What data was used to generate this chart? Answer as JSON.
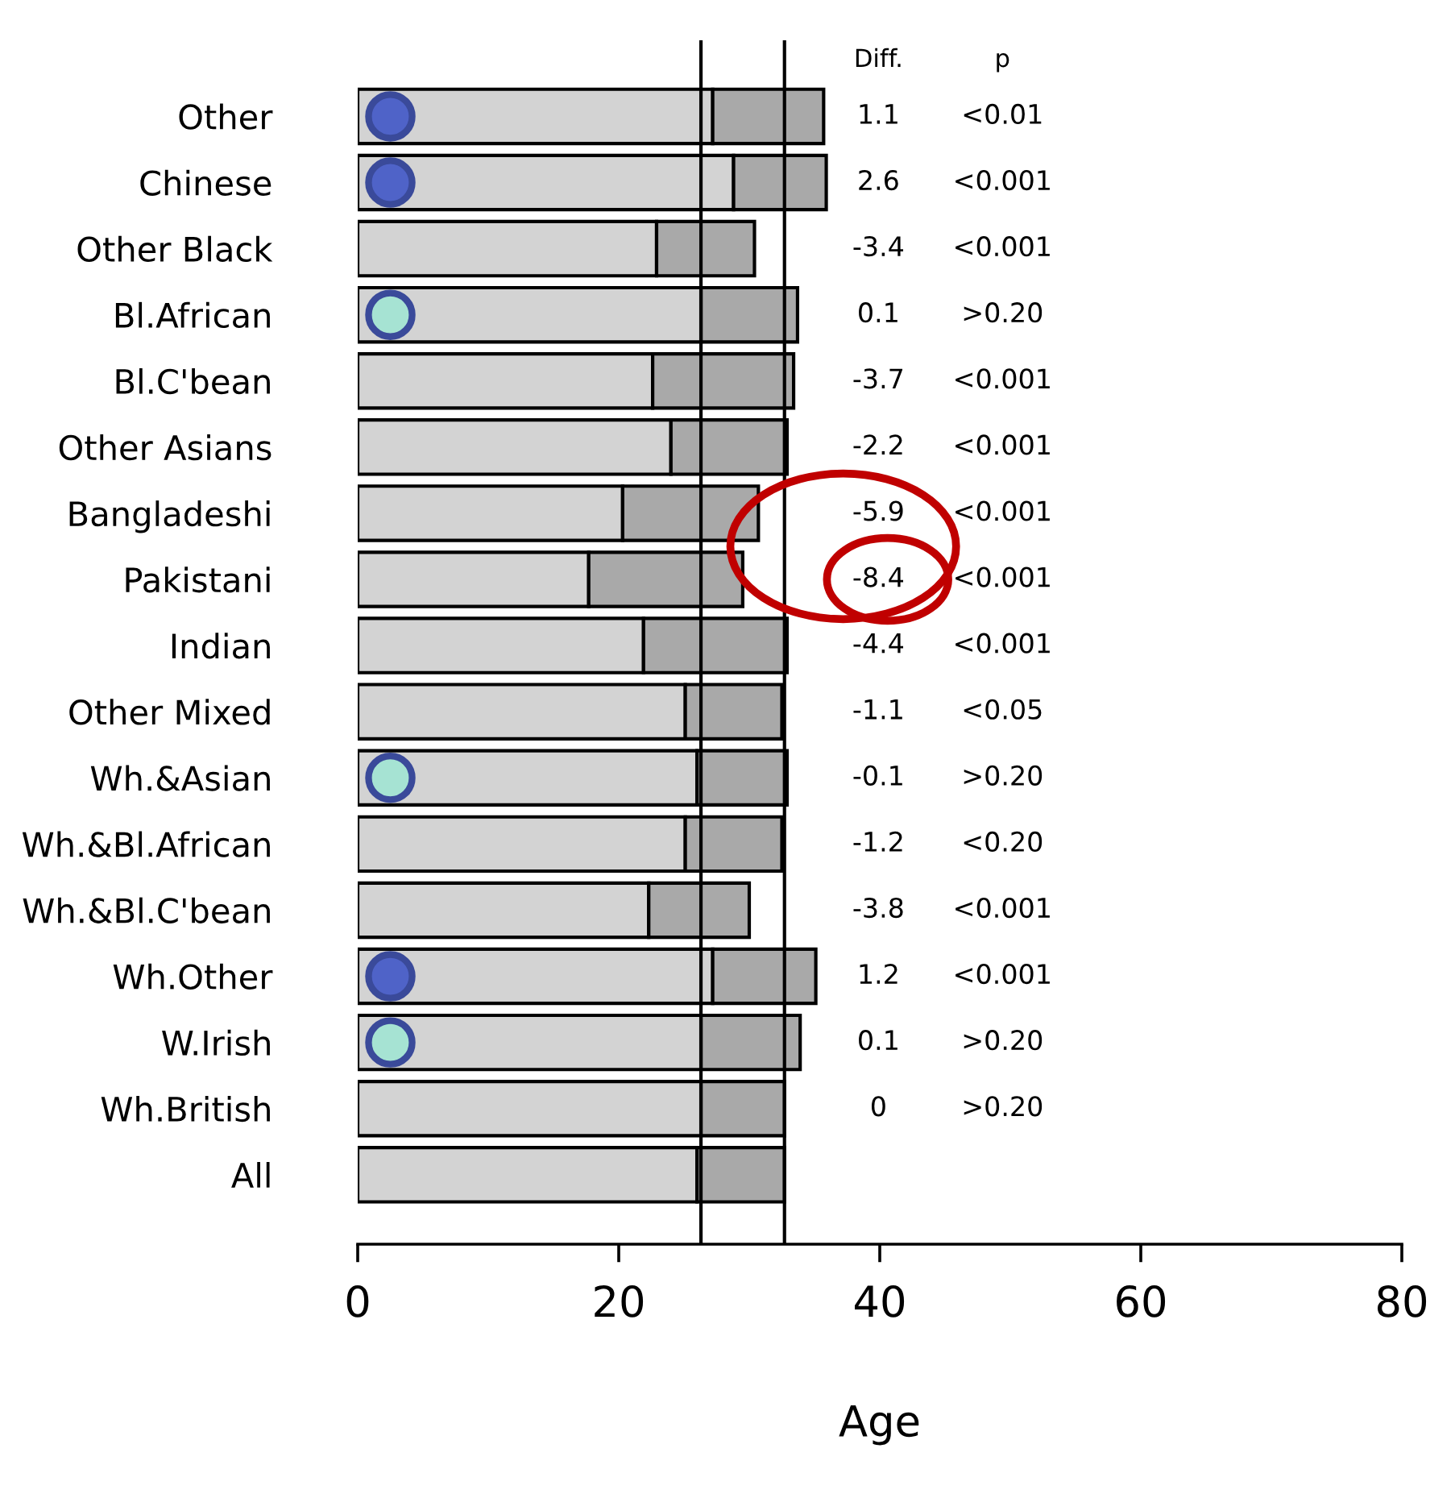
{
  "chart_data": {
    "type": "bar",
    "orientation": "horizontal",
    "stacked": true,
    "xlabel": "Age",
    "categories": [
      "Other",
      "Chinese",
      "Other Black",
      "Bl.African",
      "Bl.C'bean",
      "Other Asians",
      "Bangladeshi",
      "Pakistani",
      "Indian",
      "Other Mixed",
      "Wh.&Asian",
      "Wh.&Bl.African",
      "Wh.&Bl.C'bean",
      "Wh.Other",
      "W.Irish",
      "Wh.British",
      "All"
    ],
    "series": [
      {
        "color": "#d3d3d3",
        "values": [
          27.2,
          28.8,
          22.9,
          26.3,
          22.6,
          24.0,
          20.3,
          17.7,
          21.9,
          25.1,
          26.0,
          25.1,
          22.3,
          27.2,
          26.3,
          26.3,
          26.0
        ]
      },
      {
        "color": "#a9a9a9",
        "values": [
          8.5,
          7.1,
          7.5,
          7.4,
          10.8,
          8.9,
          10.4,
          11.8,
          11.0,
          7.4,
          6.9,
          7.4,
          7.7,
          7.9,
          7.6,
          6.4,
          6.7
        ]
      },
      {
        "type": "scatter",
        "color": "#4f63c8",
        "marker": "circle",
        "values": [
          2.5,
          2.5,
          null,
          null,
          null,
          null,
          null,
          null,
          null,
          null,
          null,
          null,
          null,
          2.5,
          null,
          null,
          null
        ]
      },
      {
        "type": "scatter",
        "color": "#a6e3d3",
        "marker": "circle",
        "values": [
          null,
          null,
          null,
          2.5,
          null,
          null,
          null,
          null,
          null,
          null,
          2.5,
          null,
          null,
          null,
          2.5,
          null,
          null
        ]
      }
    ],
    "xlim": [
      0,
      80
    ],
    "xticks": [
      0,
      20,
      40,
      60,
      80
    ],
    "ref_lines": [
      {
        "axis": "x",
        "value": 26.3
      },
      {
        "axis": "x",
        "value": 32.7
      }
    ],
    "annotations": [
      "Diff.",
      "p",
      "1.1",
      "<0.01",
      "2.6",
      "<0.001",
      "-3.4",
      "<0.001",
      "0.1",
      ">0.20",
      "-3.7",
      "<0.001",
      "-2.2",
      "<0.001",
      "-5.9",
      "<0.001",
      "-8.4",
      "<0.001",
      "-4.4",
      "<0.001",
      "-1.1",
      "<0.05",
      "-0.1",
      ">0.20",
      "-1.2",
      "<0.20",
      "-3.8",
      "<0.001",
      "1.2",
      "<0.001",
      "0.1",
      ">0.20",
      "0",
      ">0.20"
    ],
    "grid": false,
    "legend": false
  }
}
